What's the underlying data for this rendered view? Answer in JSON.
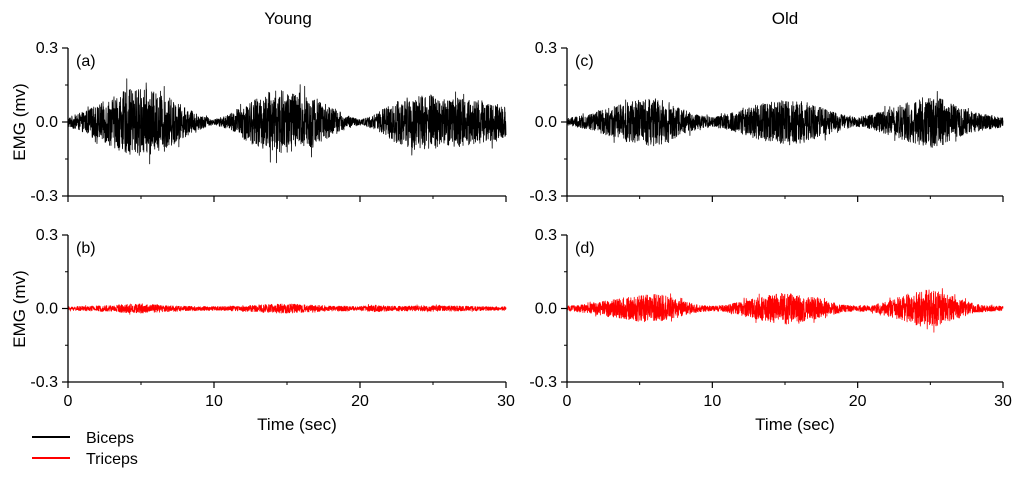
{
  "figure": {
    "column_titles": [
      "Young",
      "Old"
    ],
    "x_axis_label": "Time (sec)",
    "y_axis_label": "EMG (mv)",
    "legend": [
      {
        "label": "Biceps",
        "color": "#000000"
      },
      {
        "label": "Triceps",
        "color": "#ff0000"
      }
    ]
  },
  "chart_data": [
    {
      "type": "line",
      "panel_label": "(a)",
      "column": "Young",
      "series": [
        {
          "name": "Biceps",
          "color": "#000000"
        }
      ],
      "x_ticks": [
        "0",
        "10",
        "20",
        "30"
      ],
      "y_ticks": [
        "0.3",
        "0.0",
        "-0.3"
      ],
      "xlim": [
        0,
        30
      ],
      "ylim": [
        -0.3,
        0.3
      ],
      "xlabel": "",
      "ylabel": "EMG (mv)",
      "envelope": {
        "x": [
          0,
          1,
          2,
          3,
          4,
          5,
          6,
          7,
          8,
          9,
          10,
          11,
          12,
          13,
          14,
          15,
          16,
          17,
          18,
          19,
          20,
          21,
          22,
          23,
          24,
          25,
          26,
          27,
          28,
          29,
          30
        ],
        "amplitude": [
          0.02,
          0.04,
          0.07,
          0.1,
          0.13,
          0.14,
          0.12,
          0.1,
          0.06,
          0.03,
          0.01,
          0.03,
          0.07,
          0.1,
          0.13,
          0.13,
          0.12,
          0.1,
          0.06,
          0.03,
          0.01,
          0.03,
          0.07,
          0.1,
          0.11,
          0.11,
          0.1,
          0.1,
          0.09,
          0.08,
          0.06
        ]
      }
    },
    {
      "type": "line",
      "panel_label": "(b)",
      "column": "Young",
      "series": [
        {
          "name": "Triceps",
          "color": "#ff0000"
        }
      ],
      "x_ticks": [
        "0",
        "10",
        "20",
        "30"
      ],
      "y_ticks": [
        "0.3",
        "0.0",
        "-0.3"
      ],
      "xlim": [
        0,
        30
      ],
      "ylim": [
        -0.3,
        0.3
      ],
      "xlabel": "Time (sec)",
      "ylabel": "EMG (mv)",
      "envelope": {
        "x": [
          0,
          1,
          2,
          3,
          4,
          5,
          6,
          7,
          8,
          9,
          10,
          11,
          12,
          13,
          14,
          15,
          16,
          17,
          18,
          19,
          20,
          21,
          22,
          23,
          24,
          25,
          26,
          27,
          28,
          29,
          30
        ],
        "amplitude": [
          0.008,
          0.009,
          0.011,
          0.014,
          0.018,
          0.02,
          0.016,
          0.013,
          0.01,
          0.009,
          0.008,
          0.01,
          0.012,
          0.015,
          0.018,
          0.02,
          0.016,
          0.013,
          0.011,
          0.01,
          0.009,
          0.015,
          0.01,
          0.01,
          0.011,
          0.012,
          0.011,
          0.01,
          0.009,
          0.008,
          0.008
        ]
      }
    },
    {
      "type": "line",
      "panel_label": "(c)",
      "column": "Old",
      "series": [
        {
          "name": "Biceps",
          "color": "#000000"
        }
      ],
      "x_ticks": [
        "0",
        "10",
        "20",
        "30"
      ],
      "y_ticks": [
        "0.3",
        "0.0",
        "-0.3"
      ],
      "xlim": [
        0,
        30
      ],
      "ylim": [
        -0.3,
        0.3
      ],
      "xlabel": "",
      "ylabel": "",
      "envelope": {
        "x": [
          0,
          1,
          2,
          3,
          4,
          5,
          6,
          7,
          8,
          9,
          10,
          11,
          12,
          13,
          14,
          15,
          16,
          17,
          18,
          19,
          20,
          21,
          22,
          23,
          24,
          25,
          26,
          27,
          28,
          29,
          30
        ],
        "amplitude": [
          0.015,
          0.025,
          0.04,
          0.06,
          0.08,
          0.09,
          0.1,
          0.08,
          0.05,
          0.03,
          0.02,
          0.03,
          0.05,
          0.07,
          0.08,
          0.09,
          0.09,
          0.07,
          0.05,
          0.03,
          0.02,
          0.03,
          0.05,
          0.07,
          0.09,
          0.11,
          0.09,
          0.06,
          0.04,
          0.03,
          0.02
        ]
      }
    },
    {
      "type": "line",
      "panel_label": "(d)",
      "column": "Old",
      "series": [
        {
          "name": "Triceps",
          "color": "#ff0000"
        }
      ],
      "x_ticks": [
        "0",
        "10",
        "20",
        "30"
      ],
      "y_ticks": [
        "0.3",
        "0.0",
        "-0.3"
      ],
      "xlim": [
        0,
        30
      ],
      "ylim": [
        -0.3,
        0.3
      ],
      "xlabel": "Time (sec)",
      "ylabel": "",
      "envelope": {
        "x": [
          0,
          1,
          2,
          3,
          4,
          5,
          6,
          7,
          8,
          9,
          10,
          11,
          12,
          13,
          14,
          15,
          16,
          17,
          18,
          19,
          20,
          21,
          22,
          23,
          24,
          25,
          26,
          27,
          28,
          29,
          30
        ],
        "amplitude": [
          0.01,
          0.015,
          0.025,
          0.035,
          0.045,
          0.055,
          0.06,
          0.05,
          0.03,
          0.015,
          0.01,
          0.015,
          0.03,
          0.045,
          0.055,
          0.065,
          0.055,
          0.045,
          0.03,
          0.015,
          0.01,
          0.015,
          0.03,
          0.05,
          0.07,
          0.08,
          0.06,
          0.04,
          0.02,
          0.012,
          0.01
        ]
      }
    }
  ]
}
